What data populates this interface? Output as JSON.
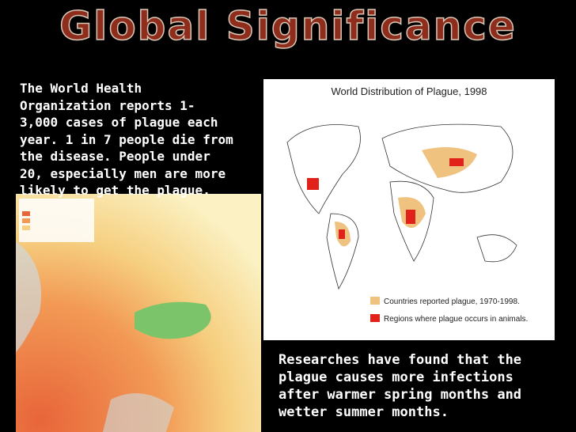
{
  "header": {
    "title": "Global Significance"
  },
  "left_text": {
    "lines": [
      "The World Health",
      "Organization reports 1-",
      "3,000 cases of plague each",
      "year. 1 in 7 people die from",
      "the disease. People under",
      "20, especially men are more",
      "likely to get the plague."
    ]
  },
  "world_map": {
    "title": "World Distribution of Plague, 1998",
    "legend": [
      "Countries reported plague, 1970-1998.",
      "Regions where plague occurs in animals."
    ]
  },
  "bottom_text": {
    "lines": [
      "Researches have found that the",
      "plague causes more infections",
      "after warmer spring months and",
      "wetter summer months."
    ]
  }
}
